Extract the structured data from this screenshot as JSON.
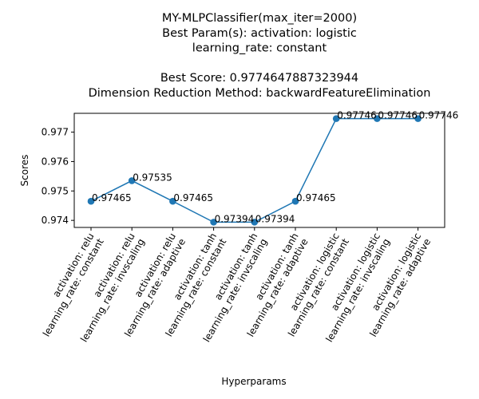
{
  "chart_data": {
    "type": "line",
    "title_lines": [
      "MY-MLPClassifier(max_iter=2000)",
      "Best Param(s): activation: logistic",
      "learning_rate: constant",
      "",
      "Best Score: 0.9774647887323944",
      "Dimension Reduction Method: backwardFeatureElimination"
    ],
    "xlabel": "Hyperparams",
    "ylabel": "Scores",
    "categories": [
      [
        "activation: relu",
        "learning_rate: constant"
      ],
      [
        "activation: relu",
        "learning_rate: invscaling"
      ],
      [
        "activation: relu",
        "learning_rate: adaptive"
      ],
      [
        "activation: tanh",
        "learning_rate: constant"
      ],
      [
        "activation: tanh",
        "learning_rate: invscaling"
      ],
      [
        "activation: tanh",
        "learning_rate: adaptive"
      ],
      [
        "activation: logistic",
        "learning_rate: constant"
      ],
      [
        "activation: logistic",
        "learning_rate: invscaling"
      ],
      [
        "activation: logistic",
        "learning_rate: adaptive"
      ]
    ],
    "series": [
      {
        "values": [
          0.97465,
          0.97535,
          0.97465,
          0.97394,
          0.97394,
          0.97465,
          0.97746,
          0.97746,
          0.97746
        ]
      }
    ],
    "data_labels": [
      "0.97465",
      "0.97535",
      "0.97465",
      "0.97394",
      "0.97394",
      "0.97465",
      "0.97746",
      "0.97746",
      "0.97746"
    ],
    "yticks": [
      "0.974",
      "0.975",
      "0.976",
      "0.977"
    ],
    "ylim": [
      0.97376,
      0.97764
    ],
    "grid": false,
    "line_color": "#1f77b4",
    "marker": "circle"
  }
}
